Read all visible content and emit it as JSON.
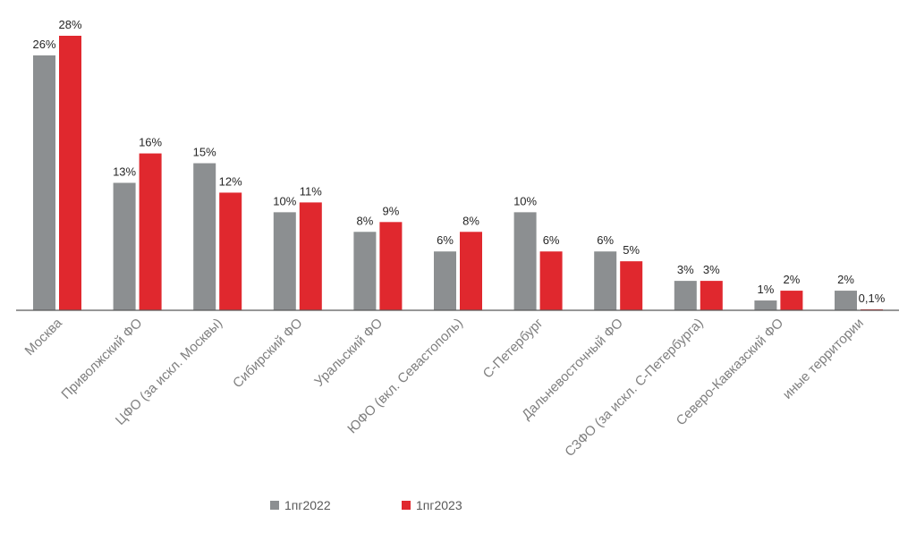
{
  "chart_data": {
    "type": "bar",
    "categories": [
      "Москва",
      "Приволжский ФО",
      "ЦФО (за искл. Москвы)",
      "Сибирский ФО",
      "Уральский ФО",
      "ЮФО (вкл. Севастополь)",
      "С-Петербург",
      "Дальневосточный ФО",
      "СЗФО (за искл. С-Петербурга)",
      "Северо-Кавказский ФО",
      "иные территории"
    ],
    "series": [
      {
        "name": "1пг2022",
        "color": "#8c8f91",
        "values": [
          26,
          13,
          15,
          10,
          8,
          6,
          10,
          6,
          3,
          1,
          2
        ],
        "labels": [
          "26%",
          "13%",
          "15%",
          "10%",
          "8%",
          "6%",
          "10%",
          "6%",
          "3%",
          "1%",
          "2%"
        ]
      },
      {
        "name": "1пг2023",
        "color": "#e0282e",
        "values": [
          28,
          16,
          12,
          11,
          9,
          8,
          6,
          5,
          3,
          2,
          0.1
        ],
        "labels": [
          "28%",
          "16%",
          "12%",
          "11%",
          "9%",
          "8%",
          "6%",
          "5%",
          "3%",
          "2%",
          "0,1%"
        ]
      }
    ],
    "title": "",
    "xlabel": "",
    "ylabel": "",
    "ylim": [
      0,
      28
    ],
    "grid": false,
    "legend": "bottom-center"
  }
}
